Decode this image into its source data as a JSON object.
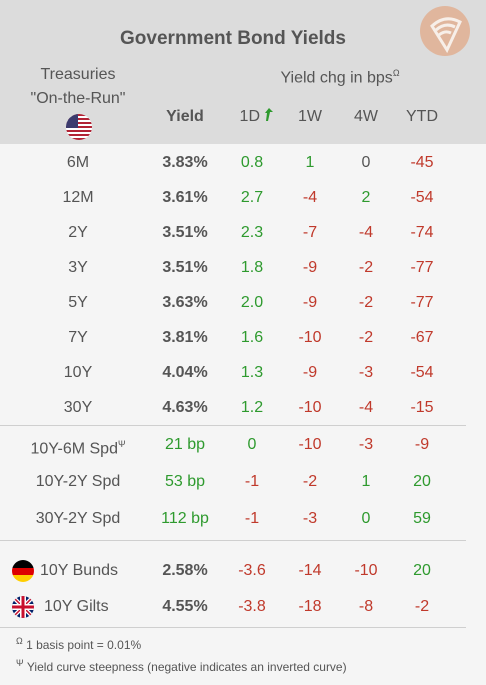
{
  "title": "Government Bond Yields",
  "header": {
    "treasuries_line1": "Treasuries",
    "treasuries_line2": "\"On-the-Run\"",
    "yield_chg": "Yield chg in bps",
    "yield_chg_sup": "Ω",
    "col_yield": "Yield",
    "col_1d": "1D",
    "col_1w": "1W",
    "col_4w": "4W",
    "col_ytd": "YTD"
  },
  "treasury_rows": [
    {
      "label": "6M",
      "yield": "3.83%",
      "d1": "0.8",
      "w1": "1",
      "w4": "0",
      "ytd": "-45"
    },
    {
      "label": "12M",
      "yield": "3.61%",
      "d1": "2.7",
      "w1": "-4",
      "w4": "2",
      "ytd": "-54"
    },
    {
      "label": "2Y",
      "yield": "3.51%",
      "d1": "2.3",
      "w1": "-7",
      "w4": "-4",
      "ytd": "-74"
    },
    {
      "label": "3Y",
      "yield": "3.51%",
      "d1": "1.8",
      "w1": "-9",
      "w4": "-2",
      "ytd": "-77"
    },
    {
      "label": "5Y",
      "yield": "3.63%",
      "d1": "2.0",
      "w1": "-9",
      "w4": "-2",
      "ytd": "-77"
    },
    {
      "label": "7Y",
      "yield": "3.81%",
      "d1": "1.6",
      "w1": "-10",
      "w4": "-2",
      "ytd": "-67"
    },
    {
      "label": "10Y",
      "yield": "4.04%",
      "d1": "1.3",
      "w1": "-9",
      "w4": "-3",
      "ytd": "-54"
    },
    {
      "label": "30Y",
      "yield": "4.63%",
      "d1": "1.2",
      "w1": "-10",
      "w4": "-4",
      "ytd": "-15"
    }
  ],
  "spread_rows": [
    {
      "label": "10Y-6M Spd",
      "sup": "Ψ",
      "yield": "21 bp",
      "d1": "0",
      "w1": "-10",
      "w4": "-3",
      "ytd": "-9"
    },
    {
      "label": "10Y-2Y Spd",
      "sup": "",
      "yield": "53 bp",
      "d1": "-1",
      "w1": "-2",
      "w4": "1",
      "ytd": "20"
    },
    {
      "label": "30Y-2Y Spd",
      "sup": "",
      "yield": "112 bp",
      "d1": "-1",
      "w1": "-3",
      "w4": "0",
      "ytd": "59"
    }
  ],
  "intl_rows": [
    {
      "label": "10Y Bunds",
      "flag": "germany-flag-icon",
      "yield": "2.58%",
      "d1": "-3.6",
      "w1": "-14",
      "w4": "-10",
      "ytd": "20"
    },
    {
      "label": "10Y Gilts",
      "flag": "uk-flag-icon",
      "yield": "4.55%",
      "d1": "-3.8",
      "w1": "-18",
      "w4": "-8",
      "ytd": "-2"
    }
  ],
  "footnotes": {
    "omega_sym": "Ω",
    "omega_text": "1 basis point = 0.01%",
    "psi_sym": "Ψ",
    "psi_text": "Yield curve steepness (negative indicates an inverted curve)"
  },
  "colors": {
    "positive": "#2e9a2e",
    "negative": "#c0392b",
    "header_bg": "#dcdcdc",
    "body_bg": "#f5f5f5"
  },
  "icons": {
    "logo": "bond-logo-icon",
    "us_flag": "us-flag-icon",
    "trend": "trend-up-arrow-icon"
  }
}
